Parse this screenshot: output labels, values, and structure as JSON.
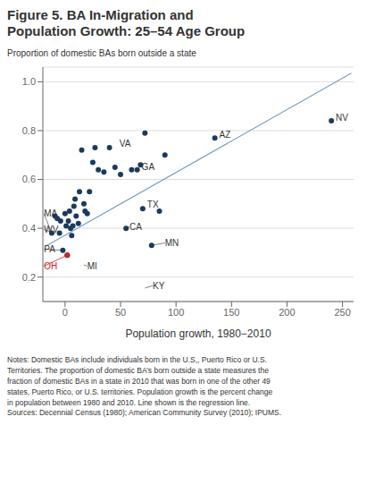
{
  "chart_data": {
    "type": "scatter",
    "title": "Figure 5. BA In-Migration and\nPopulation Growth: 25–54 Age Group",
    "y_label": "Proportion of domestic BAs born outside a state",
    "x_label": "Population growth, 1980−2010",
    "xlim": [
      -20,
      260
    ],
    "ylim": [
      0.1,
      1.06
    ],
    "xticks": [
      0,
      50,
      100,
      150,
      200,
      250
    ],
    "yticks": [
      0.2,
      0.4,
      0.6,
      0.8,
      {
        "value": 1,
        "label": "1.0"
      }
    ],
    "grid": "y",
    "series": [
      {
        "type": "scatter",
        "color": "#1B3A5C",
        "x": [
          -12,
          -9,
          -7,
          -5,
          -4,
          -2,
          0,
          1,
          2,
          3,
          4,
          5,
          6,
          7,
          8,
          9,
          10,
          12,
          13,
          15,
          17,
          18,
          20,
          22,
          25,
          27,
          30,
          35,
          40,
          45,
          50,
          55,
          60,
          65,
          68,
          70,
          72,
          78,
          85,
          90,
          135,
          240
        ],
        "values": [
          0.38,
          0.45,
          0.44,
          0.38,
          0.43,
          0.31,
          0.46,
          0.41,
          0.29,
          0.43,
          0.47,
          0.4,
          0.37,
          0.41,
          0.49,
          0.52,
          0.45,
          0.42,
          0.55,
          0.72,
          0.5,
          0.47,
          0.46,
          0.55,
          0.67,
          0.73,
          0.64,
          0.63,
          0.73,
          0.65,
          0.62,
          0.4,
          0.64,
          0.64,
          0.66,
          0.48,
          0.79,
          0.33,
          0.47,
          0.7,
          0.77,
          0.84
        ]
      },
      {
        "type": "scatter",
        "color": "#CC2222",
        "x": [
          2
        ],
        "values": [
          0.29
        ]
      },
      {
        "type": "line",
        "color": "#7A9EC0",
        "x": [
          -18,
          258
        ],
        "values": [
          0.325,
          1.035
        ]
      }
    ],
    "annotations": [
      {
        "text": "VA",
        "x": 49,
        "y": 0.735
      },
      {
        "text": "GA",
        "x": 69,
        "y": 0.64
      },
      {
        "text": "TX",
        "x": 74,
        "y": 0.483
      },
      {
        "text": "AZ",
        "x": 139,
        "y": 0.77
      },
      {
        "text": "NV",
        "x": 244,
        "y": 0.84
      },
      {
        "text": "MA",
        "x": -12,
        "y": 0.38,
        "text_x": -19,
        "text_y": 0.46
      },
      {
        "text": "WV",
        "x": -9,
        "y": 0.38,
        "text_x": -19,
        "text_y": 0.395
      },
      {
        "text": "PA",
        "x": -4,
        "y": 0.31,
        "text_x": -19,
        "text_y": 0.315
      },
      {
        "text": "OH",
        "x": 2,
        "y": 0.29,
        "text_x": -19,
        "text_y": 0.245,
        "color": "#CC2222"
      },
      {
        "text": "MI",
        "x": 17,
        "y": 0.25,
        "text_x": 20,
        "text_y": 0.245
      },
      {
        "text": "CA",
        "x": 55,
        "y": 0.4,
        "text_x": 58,
        "text_y": 0.405
      },
      {
        "text": "MN",
        "x": 78,
        "y": 0.33,
        "text_x": 90,
        "text_y": 0.34
      },
      {
        "text": "KY",
        "x": 72,
        "y": 0.155,
        "text_x": 79,
        "text_y": 0.165
      }
    ],
    "notes": "Notes: Domestic BAs include individuals born in the U.S,, Puerto Rico or U.S.\nTerritories.  The proportion of domestic BA’s born outside a state measures the\nfraction of domestic BAs in a state in 2010 that was born in one of the other 49\nstates, Puerto Rico, or U.S. territories. Population growth is the percent change\nin population between 1980 and 2010. Line shown is the regression line.\nSources: Decennial Census (1980); American Community Survey (2010); IPUMS."
  }
}
